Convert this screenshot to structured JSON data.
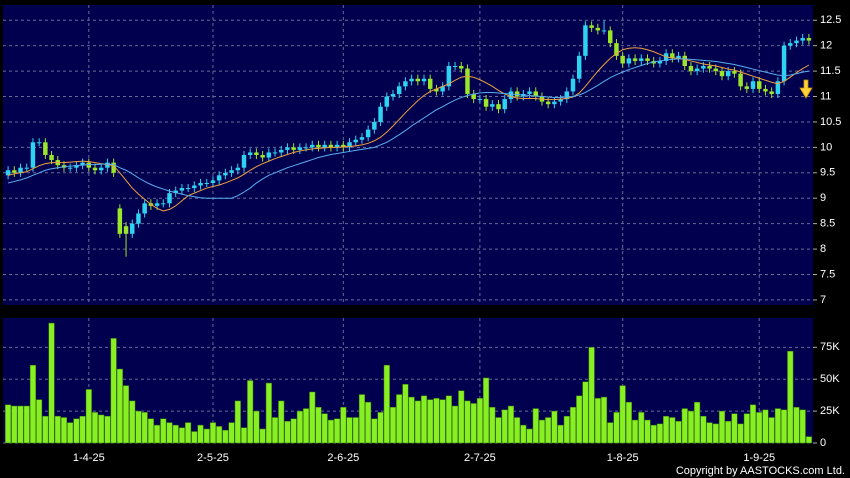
{
  "chart_data": [
    {
      "type": "candlestick",
      "up_color": "#2fd3f2",
      "down_color": "#9be52b",
      "ylim": [
        6.9,
        12.8
      ],
      "yticks": [
        7,
        7.5,
        8,
        8.5,
        9,
        9.5,
        10,
        10.5,
        11,
        11.5,
        12,
        12.5
      ],
      "grid": true,
      "open": [
        9.45,
        9.55,
        9.5,
        9.6,
        9.6,
        10.1,
        10.1,
        9.85,
        9.75,
        9.65,
        9.6,
        9.6,
        9.65,
        9.7,
        9.6,
        9.55,
        9.6,
        9.7,
        8.8,
        8.45,
        8.3,
        8.5,
        8.7,
        8.9,
        8.85,
        8.9,
        8.9,
        9.1,
        9.15,
        9.2,
        9.2,
        9.25,
        9.3,
        9.3,
        9.35,
        9.45,
        9.5,
        9.55,
        9.6,
        9.85,
        9.9,
        9.85,
        9.8,
        9.9,
        9.9,
        9.95,
        10.0,
        9.95,
        10.0,
        10.0,
        10.05,
        10.0,
        10.05,
        10.0,
        10.05,
        10.0,
        10.1,
        10.15,
        10.2,
        10.35,
        10.5,
        10.8,
        11.0,
        11.05,
        11.2,
        11.3,
        11.35,
        11.3,
        11.35,
        11.15,
        11.1,
        11.2,
        11.6,
        11.6,
        11.55,
        11.05,
        10.95,
        10.95,
        10.8,
        10.85,
        10.75,
        10.95,
        11.1,
        11.0,
        11.05,
        11.1,
        11.0,
        10.9,
        10.85,
        10.9,
        10.95,
        11.1,
        11.35,
        11.8,
        12.4,
        12.35,
        12.3,
        12.3,
        12.05,
        11.8,
        11.65,
        11.75,
        11.7,
        11.75,
        11.7,
        11.65,
        11.7,
        11.85,
        11.75,
        11.8,
        11.6,
        11.5,
        11.55,
        11.6,
        11.55,
        11.5,
        11.4,
        11.5,
        11.45,
        11.2,
        11.15,
        11.3,
        11.15,
        11.1,
        11.05,
        11.3,
        12.0,
        12.05,
        12.1,
        12.15
      ],
      "high": [
        9.63,
        9.63,
        9.68,
        9.68,
        10.18,
        10.18,
        10.18,
        9.93,
        9.83,
        9.73,
        9.68,
        9.73,
        9.78,
        9.78,
        9.68,
        9.68,
        9.78,
        9.78,
        8.88,
        8.53,
        8.58,
        8.78,
        8.98,
        8.98,
        8.98,
        8.98,
        9.18,
        9.23,
        9.28,
        9.28,
        9.33,
        9.38,
        9.38,
        9.43,
        9.53,
        9.58,
        9.63,
        9.68,
        9.93,
        9.98,
        9.98,
        9.93,
        9.98,
        9.98,
        10.03,
        10.08,
        10.08,
        10.08,
        10.08,
        10.13,
        10.13,
        10.13,
        10.13,
        10.13,
        10.13,
        10.18,
        10.23,
        10.28,
        10.43,
        10.58,
        10.88,
        11.08,
        11.13,
        11.28,
        11.38,
        11.43,
        11.43,
        11.43,
        11.43,
        11.23,
        11.28,
        11.68,
        11.68,
        11.68,
        11.63,
        11.13,
        11.03,
        11.03,
        10.93,
        10.93,
        11.03,
        11.18,
        11.18,
        11.13,
        11.18,
        11.18,
        11.08,
        10.98,
        10.98,
        11.03,
        11.18,
        11.43,
        11.88,
        12.48,
        12.48,
        12.43,
        12.5,
        12.38,
        12.13,
        11.88,
        11.83,
        11.83,
        11.83,
        11.83,
        11.78,
        11.78,
        11.93,
        11.93,
        11.88,
        11.88,
        11.68,
        11.63,
        11.68,
        11.68,
        11.63,
        11.58,
        11.58,
        11.58,
        11.53,
        11.28,
        11.38,
        11.38,
        11.23,
        11.18,
        11.38,
        12.08,
        12.13,
        12.18,
        12.23,
        12.23
      ],
      "low": [
        9.37,
        9.42,
        9.42,
        9.52,
        9.52,
        10.02,
        9.77,
        9.67,
        9.57,
        9.52,
        9.52,
        9.52,
        9.57,
        9.52,
        9.47,
        9.47,
        9.52,
        9.42,
        8.22,
        7.85,
        8.22,
        8.42,
        8.62,
        8.77,
        8.77,
        8.82,
        8.82,
        9.02,
        9.07,
        9.12,
        9.12,
        9.17,
        9.22,
        9.22,
        9.27,
        9.37,
        9.42,
        9.47,
        9.52,
        9.77,
        9.77,
        9.72,
        9.72,
        9.82,
        9.82,
        9.87,
        9.87,
        9.87,
        9.92,
        9.92,
        9.92,
        9.92,
        9.92,
        9.92,
        9.92,
        9.92,
        10.02,
        10.07,
        10.12,
        10.27,
        10.42,
        10.72,
        10.92,
        10.97,
        11.12,
        11.22,
        11.22,
        11.22,
        11.07,
        11.02,
        11.02,
        11.12,
        11.52,
        11.47,
        10.97,
        10.87,
        10.87,
        10.72,
        10.72,
        10.67,
        10.67,
        10.87,
        10.92,
        10.92,
        10.97,
        10.92,
        10.82,
        10.77,
        10.77,
        10.82,
        10.87,
        11.02,
        11.27,
        11.72,
        12.27,
        12.22,
        12.22,
        11.97,
        11.72,
        11.57,
        11.57,
        11.62,
        11.62,
        11.62,
        11.57,
        11.57,
        11.62,
        11.67,
        11.67,
        11.52,
        11.42,
        11.42,
        11.47,
        11.47,
        11.42,
        11.32,
        11.32,
        11.37,
        11.12,
        11.07,
        11.07,
        11.07,
        11.02,
        10.97,
        10.97,
        11.22,
        11.92,
        11.97,
        12.02,
        12.02
      ],
      "close": [
        9.55,
        9.5,
        9.6,
        9.6,
        10.1,
        10.1,
        9.85,
        9.75,
        9.65,
        9.6,
        9.6,
        9.65,
        9.7,
        9.6,
        9.55,
        9.6,
        9.7,
        9.5,
        8.3,
        8.3,
        8.5,
        8.7,
        8.9,
        8.85,
        8.9,
        8.9,
        9.1,
        9.15,
        9.2,
        9.2,
        9.25,
        9.3,
        9.3,
        9.35,
        9.45,
        9.5,
        9.55,
        9.6,
        9.85,
        9.9,
        9.85,
        9.8,
        9.9,
        9.9,
        9.95,
        10.0,
        9.95,
        10.0,
        10.0,
        10.05,
        10.0,
        10.05,
        10.0,
        10.05,
        10.0,
        10.1,
        10.15,
        10.2,
        10.35,
        10.5,
        10.8,
        11.0,
        11.05,
        11.2,
        11.3,
        11.35,
        11.3,
        11.35,
        11.15,
        11.1,
        11.2,
        11.6,
        11.6,
        11.55,
        11.05,
        10.95,
        10.95,
        10.8,
        10.85,
        10.75,
        10.95,
        11.1,
        11.0,
        11.05,
        11.1,
        11.0,
        10.9,
        10.85,
        10.9,
        10.95,
        11.1,
        11.35,
        11.8,
        12.4,
        12.35,
        12.3,
        12.3,
        12.05,
        11.8,
        11.65,
        11.75,
        11.7,
        11.75,
        11.7,
        11.65,
        11.7,
        11.85,
        11.75,
        11.8,
        11.6,
        11.5,
        11.55,
        11.6,
        11.55,
        11.5,
        11.4,
        11.5,
        11.45,
        11.2,
        11.15,
        11.3,
        11.15,
        11.1,
        11.05,
        11.3,
        12.0,
        12.05,
        12.1,
        12.15,
        12.1
      ],
      "lines": [
        {
          "color": "#f0a040",
          "values": [
            9.45,
            9.48,
            9.5,
            9.52,
            9.58,
            9.64,
            9.68,
            9.7,
            9.7,
            9.7,
            9.71,
            9.72,
            9.73,
            9.72,
            9.7,
            9.68,
            9.66,
            9.64,
            9.5,
            9.35,
            9.2,
            9.08,
            8.98,
            8.88,
            8.8,
            8.75,
            8.78,
            8.85,
            8.95,
            9.05,
            9.1,
            9.15,
            9.2,
            9.23,
            9.26,
            9.3,
            9.35,
            9.4,
            9.47,
            9.55,
            9.62,
            9.68,
            9.73,
            9.78,
            9.82,
            9.86,
            9.9,
            9.93,
            9.95,
            9.97,
            9.98,
            9.99,
            10.0,
            10.0,
            10.01,
            10.02,
            10.03,
            10.05,
            10.08,
            10.13,
            10.2,
            10.3,
            10.42,
            10.55,
            10.68,
            10.8,
            10.92,
            11.02,
            11.1,
            11.15,
            11.2,
            11.25,
            11.32,
            11.38,
            11.4,
            11.38,
            11.33,
            11.27,
            11.2,
            11.12,
            11.05,
            11.0,
            10.97,
            10.96,
            10.96,
            10.96,
            10.95,
            10.94,
            10.94,
            10.95,
            10.96,
            10.99,
            11.07,
            11.2,
            11.35,
            11.5,
            11.63,
            11.75,
            11.85,
            11.92,
            11.95,
            11.96,
            11.95,
            11.92,
            11.88,
            11.83,
            11.78,
            11.76,
            11.75,
            11.73,
            11.7,
            11.67,
            11.64,
            11.62,
            11.6,
            11.57,
            11.54,
            11.52,
            11.48,
            11.44,
            11.4,
            11.36,
            11.32,
            11.28,
            11.25,
            11.3,
            11.38,
            11.47,
            11.55,
            11.62
          ]
        },
        {
          "color": "#5aaef0",
          "values": [
            9.3,
            9.33,
            9.36,
            9.4,
            9.45,
            9.5,
            9.55,
            9.58,
            9.6,
            9.62,
            9.63,
            9.64,
            9.65,
            9.66,
            9.66,
            9.67,
            9.67,
            9.66,
            9.6,
            9.55,
            9.48,
            9.4,
            9.33,
            9.27,
            9.22,
            9.18,
            9.14,
            9.11,
            9.08,
            9.05,
            9.03,
            9.01,
            9.0,
            9.0,
            9.0,
            9.0,
            9.0,
            9.05,
            9.12,
            9.2,
            9.3,
            9.38,
            9.45,
            9.5,
            9.55,
            9.6,
            9.64,
            9.68,
            9.72,
            9.76,
            9.8,
            9.83,
            9.86,
            9.88,
            9.9,
            9.92,
            9.94,
            9.96,
            9.98,
            10.0,
            10.05,
            10.1,
            10.17,
            10.25,
            10.33,
            10.42,
            10.5,
            10.58,
            10.66,
            10.74,
            10.8,
            10.87,
            10.93,
            10.98,
            11.02,
            11.05,
            11.07,
            11.08,
            11.08,
            11.07,
            11.06,
            11.05,
            11.04,
            11.03,
            11.02,
            11.01,
            11.0,
            10.99,
            10.98,
            10.98,
            10.99,
            11.0,
            11.03,
            11.08,
            11.15,
            11.22,
            11.3,
            11.37,
            11.43,
            11.48,
            11.53,
            11.57,
            11.61,
            11.65,
            11.68,
            11.7,
            11.72,
            11.73,
            11.74,
            11.74,
            11.73,
            11.72,
            11.71,
            11.7,
            11.69,
            11.67,
            11.65,
            11.63,
            11.6,
            11.57,
            11.54,
            11.51,
            11.48,
            11.45,
            11.42,
            11.41,
            11.42,
            11.45,
            11.48,
            11.5
          ]
        }
      ]
    },
    {
      "type": "bar",
      "color": "#88f022",
      "ylim": [
        0,
        98000
      ],
      "yticks": [
        0,
        {
          "value": 25000,
          "label": "25K"
        },
        {
          "value": 50000,
          "label": "50K"
        },
        {
          "value": 75000,
          "label": "75K"
        }
      ],
      "grid": true,
      "categories": [
        null,
        null,
        null,
        null,
        null,
        null,
        null,
        null,
        null,
        null,
        null,
        null,
        null,
        "1-4-25",
        null,
        null,
        null,
        null,
        null,
        null,
        null,
        null,
        null,
        null,
        null,
        null,
        null,
        null,
        null,
        null,
        null,
        null,
        null,
        "2-5-25",
        null,
        null,
        null,
        null,
        null,
        null,
        null,
        null,
        null,
        null,
        null,
        null,
        null,
        null,
        null,
        null,
        null,
        null,
        null,
        null,
        "2-6-25",
        null,
        null,
        null,
        null,
        null,
        null,
        null,
        null,
        null,
        null,
        null,
        null,
        null,
        null,
        null,
        null,
        null,
        null,
        null,
        null,
        null,
        "2-7-25",
        null,
        null,
        null,
        null,
        null,
        null,
        null,
        null,
        null,
        null,
        null,
        null,
        null,
        null,
        null,
        null,
        null,
        null,
        null,
        null,
        null,
        null,
        "1-8-25",
        null,
        null,
        null,
        null,
        null,
        null,
        null,
        null,
        null,
        null,
        null,
        null,
        null,
        null,
        null,
        null,
        null,
        null,
        null,
        null,
        null,
        "1-9-25",
        null,
        null,
        null,
        null,
        null,
        null,
        null,
        null
      ],
      "values": [
        30000,
        29000,
        29000,
        29000,
        61000,
        34000,
        21000,
        94000,
        21000,
        20000,
        16000,
        19000,
        21000,
        42000,
        24000,
        22000,
        21000,
        82000,
        58000,
        45000,
        33000,
        25000,
        24000,
        19000,
        14000,
        19000,
        16000,
        14000,
        12000,
        16000,
        9000,
        14000,
        11000,
        16000,
        13000,
        10000,
        16000,
        33000,
        12000,
        49000,
        25000,
        11000,
        47000,
        20000,
        33000,
        17000,
        19000,
        25000,
        27000,
        40000,
        28000,
        23000,
        18000,
        19000,
        28000,
        20000,
        20000,
        38000,
        32000,
        19000,
        24000,
        61000,
        28000,
        38000,
        46000,
        36000,
        33000,
        37000,
        34000,
        35000,
        34000,
        37000,
        29000,
        41000,
        33000,
        31000,
        35000,
        51000,
        28000,
        20000,
        26000,
        29000,
        20000,
        14000,
        11000,
        27000,
        18000,
        20000,
        25000,
        14000,
        21000,
        28000,
        37000,
        48000,
        75000,
        35000,
        36000,
        16000,
        24000,
        45000,
        32000,
        18000,
        24000,
        18000,
        14000,
        15000,
        21000,
        20000,
        17000,
        27000,
        25000,
        32000,
        21000,
        16000,
        15000,
        25000,
        17000,
        23000,
        15000,
        23000,
        30000,
        24000,
        26000,
        20000,
        27000,
        26000,
        72000,
        28000,
        26000,
        5000
      ]
    }
  ],
  "copyright": "Copyright by AASTOCKS.com Ltd."
}
